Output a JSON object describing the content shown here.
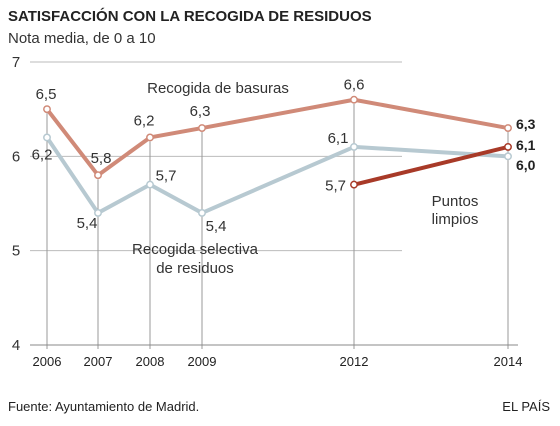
{
  "chart_data": {
    "type": "line",
    "title": "SATISFACCIÓN CON LA RECOGIDA DE RESIDUOS",
    "subtitle": "Nota media, de 0 a 10",
    "x": [
      2006,
      2007,
      2008,
      2009,
      2012,
      2014
    ],
    "x_tick_labels": [
      "2006",
      "2007",
      "2008",
      "2009",
      "2012",
      "2014"
    ],
    "ylim": [
      4,
      7
    ],
    "y_ticks": [
      4,
      5,
      6,
      7
    ],
    "y_tick_labels": [
      "4",
      "5",
      "6",
      "7"
    ],
    "grid": "horizontal",
    "series": [
      {
        "name": "Recogida de basuras",
        "color": "#d08a78",
        "x": [
          2006,
          2007,
          2008,
          2009,
          2012,
          2014
        ],
        "values": [
          6.5,
          5.8,
          6.2,
          6.3,
          6.6,
          6.3
        ],
        "labels": [
          "6,5",
          "5,8",
          "6,2",
          "6,3",
          "6,6",
          "6,3"
        ]
      },
      {
        "name_lines": [
          "Recogida selectiva",
          "de residuos"
        ],
        "color": "#b7c9d1",
        "x": [
          2006,
          2007,
          2008,
          2009,
          2012,
          2014
        ],
        "values": [
          6.2,
          5.4,
          5.7,
          5.4,
          6.1,
          6.0
        ],
        "labels": [
          "6,2",
          "5,4",
          "5,7",
          "5,4",
          "6,1",
          "6,0"
        ]
      },
      {
        "name_lines": [
          "Puntos",
          "limpios"
        ],
        "color": "#a83a28",
        "x": [
          2012,
          2014
        ],
        "values": [
          5.7,
          6.1
        ],
        "labels": [
          "5,7",
          "6,1"
        ]
      }
    ]
  },
  "footer": {
    "source": "Fuente: Ayuntamiento de Madrid.",
    "brand": "EL PAÍS"
  }
}
